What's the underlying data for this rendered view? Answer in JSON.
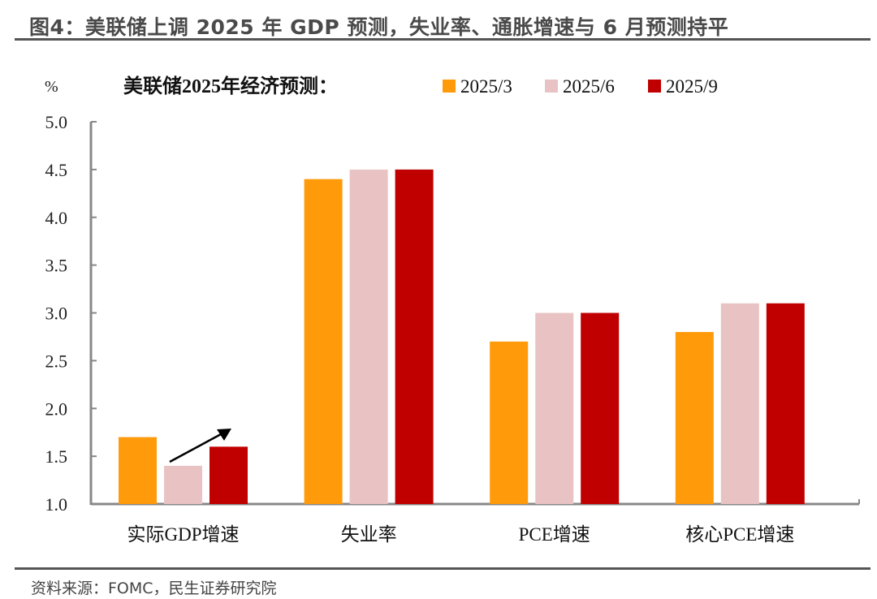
{
  "title": "图4：美联储上调 2025 年 GDP 预测，失业率、通胀增速与 6 月预测持平",
  "source": "资料来源：FOMC，民生证券研究院",
  "chart_data": {
    "type": "bar",
    "title": "美联储2025年经济预测：",
    "ylabel": "%",
    "ylim": [
      1.0,
      5.0
    ],
    "yticks": [
      "1.0",
      "1.5",
      "2.0",
      "2.5",
      "3.0",
      "3.5",
      "4.0",
      "4.5",
      "5.0"
    ],
    "grid": false,
    "legend_placement": "top",
    "categories": [
      "实际GDP增速",
      "失业率",
      "PCE增速",
      "核心PCE增速"
    ],
    "series": [
      {
        "name": "2025/3",
        "color": "#FF9A0A",
        "values": [
          1.7,
          4.4,
          2.7,
          2.8
        ]
      },
      {
        "name": "2025/6",
        "color": "#E9C3C3",
        "values": [
          1.4,
          4.5,
          3.0,
          3.1
        ]
      },
      {
        "name": "2025/9",
        "color": "#C00000",
        "values": [
          1.6,
          4.5,
          3.0,
          3.1
        ]
      }
    ],
    "annotations": [
      {
        "type": "arrow",
        "category": "实际GDP增速",
        "direction": "up-right"
      }
    ]
  }
}
